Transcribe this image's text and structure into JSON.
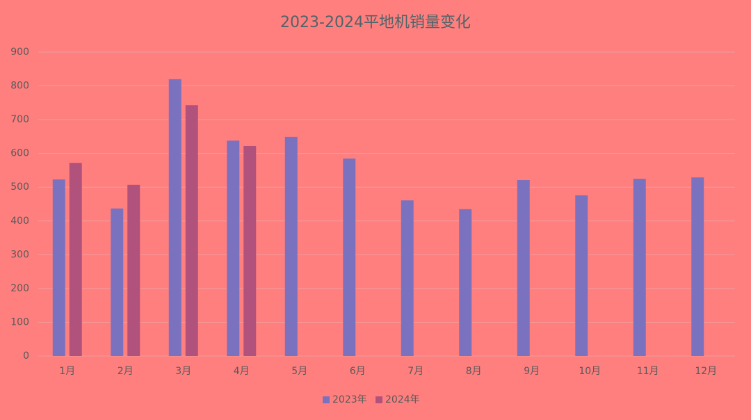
{
  "chart_data": {
    "type": "bar",
    "title": "2023-2024平地机销量变化",
    "categories": [
      "1月",
      "2月",
      "3月",
      "4月",
      "5月",
      "6月",
      "7月",
      "8月",
      "9月",
      "10月",
      "11月",
      "12月"
    ],
    "series": [
      {
        "name": "2023年",
        "color": "#7b72bf",
        "values": [
          523,
          437,
          820,
          638,
          649,
          585,
          461,
          435,
          521,
          476,
          525,
          529
        ]
      },
      {
        "name": "2024年",
        "color": "#b0527c",
        "values": [
          572,
          507,
          743,
          622,
          null,
          null,
          null,
          null,
          null,
          null,
          null,
          null
        ]
      }
    ],
    "ylim": [
      0,
      900
    ],
    "yticks": [
      0,
      100,
      200,
      300,
      400,
      500,
      600,
      700,
      800,
      900
    ],
    "grid": true,
    "legend": "bottom"
  }
}
